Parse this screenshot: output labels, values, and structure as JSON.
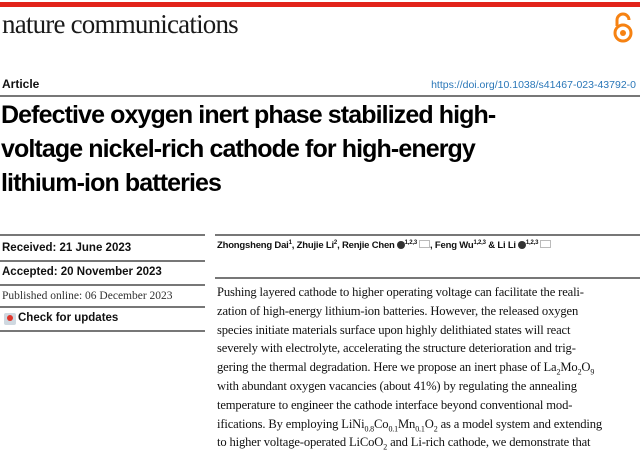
{
  "header": {
    "journal": "nature communications",
    "open_access_icon": "open-access-lock-icon",
    "brand_color": "#e2231a",
    "oa_color": "#f68212"
  },
  "article_type": "Article",
  "doi": "https://doi.org/10.1038/s41467-023-43792-0",
  "title_lines": [
    "Defective oxygen inert phase stabilized high-",
    "voltage nickel-rich cathode for high-energy",
    "lithium-ion batteries"
  ],
  "dates": {
    "received": "Received: 21 June 2023",
    "accepted": "Accepted: 20 November 2023",
    "published": "Published online: 06 December 2023"
  },
  "check_updates": "Check for updates",
  "authors": [
    {
      "name": "Zhongsheng Dai",
      "aff": "1",
      "orcid": false,
      "mail": false,
      "sep": ", "
    },
    {
      "name": "Zhujie Li",
      "aff": "2",
      "orcid": false,
      "mail": false,
      "sep": ", "
    },
    {
      "name": "Renjie Chen",
      "aff": "1,2,3",
      "orcid": true,
      "mail": true,
      "sep": ", "
    },
    {
      "name": "Feng Wu",
      "aff": "1,2,3",
      "orcid": false,
      "mail": false,
      "sep": " & "
    },
    {
      "name": "Li Li",
      "aff": "1,2,3",
      "orcid": true,
      "mail": true,
      "sep": ""
    }
  ],
  "abstract_lines": [
    [
      {
        "t": "Pushing layered cathode to higher operating voltage can facilitate the reali-"
      }
    ],
    [
      {
        "t": "zation of high-energy lithium-ion batteries. However, the released oxygen"
      }
    ],
    [
      {
        "t": "species initiate materials surface upon highly delithiated states will react"
      }
    ],
    [
      {
        "t": "severely with electrolyte, accelerating the structure deterioration and trig-"
      }
    ],
    [
      {
        "t": "gering the thermal degradation. Here we propose an inert phase of La"
      },
      {
        "t": "2",
        "sub": true
      },
      {
        "t": "Mo"
      },
      {
        "t": "2",
        "sub": true
      },
      {
        "t": "O"
      },
      {
        "t": "9",
        "sub": true
      }
    ],
    [
      {
        "t": "with abundant oxygen vacancies (about 41%) by regulating the annealing"
      }
    ],
    [
      {
        "t": "temperature to engineer the cathode interface beyond conventional mod-"
      }
    ],
    [
      {
        "t": "ifications. By employing LiNi"
      },
      {
        "t": "0.8",
        "sub": true
      },
      {
        "t": "Co"
      },
      {
        "t": "0.1",
        "sub": true
      },
      {
        "t": "Mn"
      },
      {
        "t": "0.1",
        "sub": true
      },
      {
        "t": "O"
      },
      {
        "t": "2",
        "sub": true
      },
      {
        "t": " as a model system and extending"
      }
    ],
    [
      {
        "t": "to higher voltage-operated LiCoO"
      },
      {
        "t": "2",
        "sub": true
      },
      {
        "t": " and Li-rich cathode, we demonstrate that"
      }
    ]
  ]
}
